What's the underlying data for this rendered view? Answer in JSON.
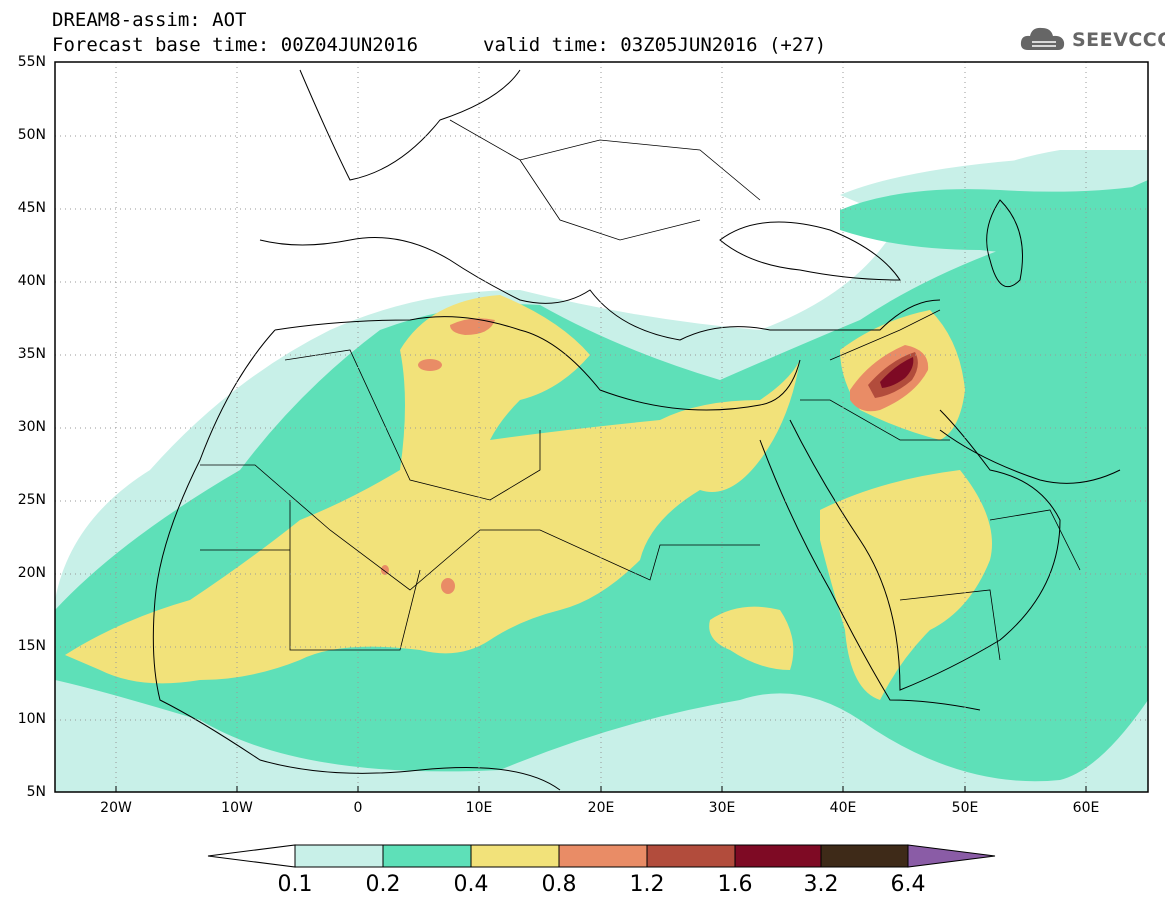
{
  "header": {
    "title": "DREAM8-assim: AOT",
    "base_time": "Forecast base time: 00Z04JUN2016",
    "valid_time": "valid time: 03Z05JUN2016 (+27)",
    "logo_text": "SEEVCCC"
  },
  "map": {
    "lat_labels": [
      "55N",
      "50N",
      "45N",
      "40N",
      "35N",
      "30N",
      "25N",
      "20N",
      "15N",
      "10N",
      "5N"
    ],
    "lon_labels": [
      "20W",
      "10W",
      "0",
      "10E",
      "20E",
      "30E",
      "40E",
      "50E",
      "60E"
    ]
  },
  "colorbar": {
    "levels": [
      "0.1",
      "0.2",
      "0.4",
      "0.8",
      "1.2",
      "1.6",
      "3.2",
      "6.4"
    ],
    "colors": [
      "#c8f0e8",
      "#5ee0b8",
      "#f2e27a",
      "#e98c66",
      "#b24c3c",
      "#7e0a24",
      "#3e2a18",
      "#8a5ca6"
    ]
  }
}
